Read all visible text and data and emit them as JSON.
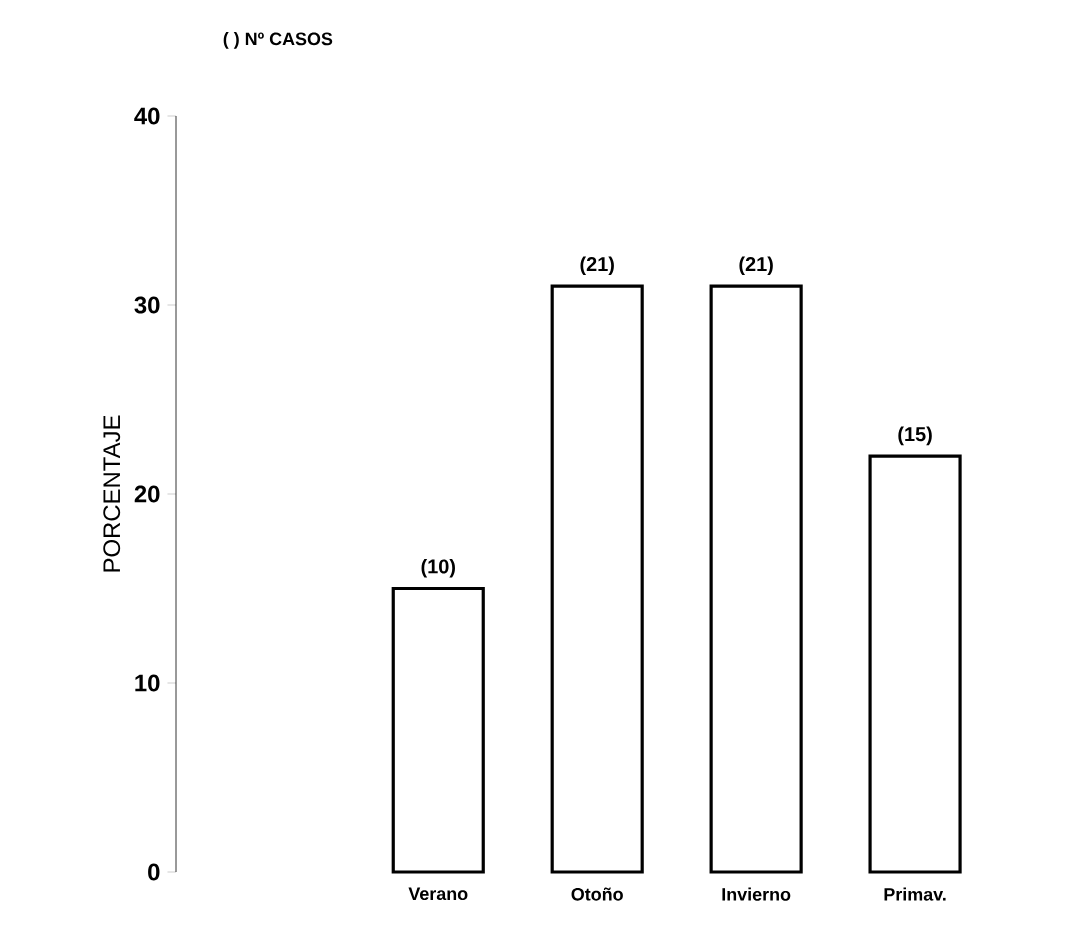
{
  "chart_data": {
    "type": "bar",
    "ylabel": "PORCENTAJE",
    "categories": [
      "Verano",
      "Otoño",
      "Invierno",
      "Primav."
    ],
    "values": [
      15,
      31,
      31,
      22
    ],
    "color": "#ffffff",
    "ylim": [
      0,
      40
    ],
    "yticks": [
      0,
      10,
      20,
      30,
      40
    ],
    "grid": false,
    "annotations": [
      "( ) Nº CASOS",
      {
        "text": "(10)",
        "x": "Verano",
        "y": 15
      },
      {
        "text": "(21)",
        "x": "Otoño",
        "y": 31
      },
      {
        "text": "(21)",
        "x": "Invierno",
        "y": 31
      },
      {
        "text": "(15)",
        "x": "Primav.",
        "y": 22
      }
    ]
  }
}
